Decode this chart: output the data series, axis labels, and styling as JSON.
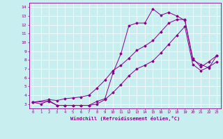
{
  "xlabel": "Windchill (Refroidissement éolien,°C)",
  "bg_color": "#c8eef0",
  "line_color": "#880088",
  "xlim": [
    -0.5,
    23.5
  ],
  "ylim": [
    2.5,
    14.5
  ],
  "xticks": [
    0,
    1,
    2,
    3,
    4,
    5,
    6,
    7,
    8,
    9,
    10,
    11,
    12,
    13,
    14,
    15,
    16,
    17,
    18,
    19,
    20,
    21,
    22,
    23
  ],
  "yticks": [
    3,
    4,
    5,
    6,
    7,
    8,
    9,
    10,
    11,
    12,
    13,
    14
  ],
  "series1_x": [
    0,
    1,
    2,
    3,
    4,
    5,
    6,
    7,
    8,
    9,
    10,
    11,
    12,
    13,
    14,
    15,
    16,
    17,
    18,
    19,
    20,
    21,
    22,
    23
  ],
  "series1_y": [
    3.2,
    3.0,
    3.4,
    2.85,
    2.85,
    2.85,
    2.85,
    2.85,
    3.3,
    3.6,
    6.5,
    8.7,
    11.9,
    12.2,
    12.2,
    13.8,
    13.1,
    13.4,
    13.0,
    12.5,
    8.0,
    7.5,
    7.1,
    8.5
  ],
  "series2_x": [
    0,
    2,
    3,
    4,
    5,
    6,
    7,
    8,
    9,
    10,
    11,
    12,
    13,
    14,
    15,
    16,
    17,
    18,
    19,
    20,
    21,
    22,
    23
  ],
  "series2_y": [
    3.2,
    3.5,
    3.4,
    3.6,
    3.7,
    3.8,
    4.0,
    4.8,
    5.7,
    6.8,
    7.4,
    8.2,
    9.1,
    9.6,
    10.2,
    11.2,
    12.2,
    12.6,
    12.6,
    8.2,
    7.2,
    7.8,
    8.5
  ],
  "series3_x": [
    0,
    2,
    3,
    4,
    5,
    6,
    7,
    8,
    9,
    10,
    11,
    12,
    13,
    14,
    15,
    16,
    17,
    18,
    19,
    20,
    21,
    22,
    23
  ],
  "series3_y": [
    3.2,
    3.3,
    2.85,
    2.85,
    2.85,
    2.85,
    2.85,
    3.0,
    3.5,
    4.3,
    5.2,
    6.2,
    7.0,
    7.4,
    7.9,
    8.8,
    9.8,
    10.8,
    11.8,
    7.5,
    6.8,
    7.2,
    7.8
  ]
}
